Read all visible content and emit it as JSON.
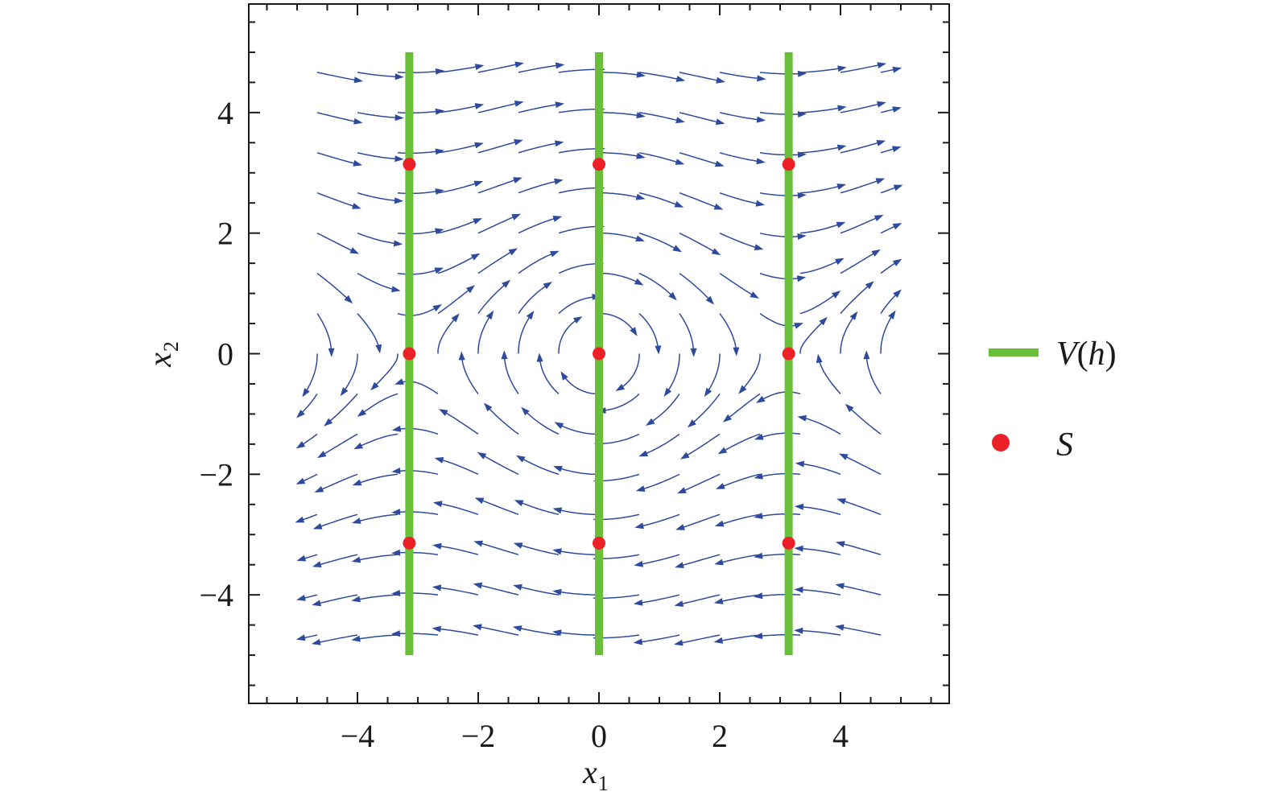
{
  "chart_data": {
    "type": "streamplot",
    "xlabel": {
      "base": "x",
      "sub": "1"
    },
    "ylabel": {
      "base": "x",
      "sub": "2"
    },
    "xlim": [
      -5.8,
      5.8
    ],
    "ylim": [
      -5.8,
      5.8
    ],
    "field_domain": [
      -5,
      5
    ],
    "x_ticks": [
      -4,
      -2,
      0,
      2,
      4
    ],
    "y_ticks": [
      -4,
      -2,
      0,
      2,
      4
    ],
    "x_tick_labels": [
      "−4",
      "−2",
      "0",
      "2",
      "4"
    ],
    "y_tick_labels": [
      "−4",
      "−2",
      "0",
      "2",
      "4"
    ],
    "minor_tick_step": 0.5,
    "vector_field": {
      "dx1": "x2",
      "dx2": "-sin(x1)"
    },
    "lines": [
      {
        "name": "V(h)",
        "x": -3.1416,
        "y_range": [
          -5,
          5
        ]
      },
      {
        "name": "V(h)",
        "x": 0,
        "y_range": [
          -5,
          5
        ]
      },
      {
        "name": "V(h)",
        "x": 3.1416,
        "y_range": [
          -5,
          5
        ]
      }
    ],
    "points": [
      {
        "x": -3.1416,
        "y": 3.1416
      },
      {
        "x": 0,
        "y": 3.1416
      },
      {
        "x": 3.1416,
        "y": 3.1416
      },
      {
        "x": -3.1416,
        "y": 0
      },
      {
        "x": 0,
        "y": 0
      },
      {
        "x": 3.1416,
        "y": 0
      },
      {
        "x": -3.1416,
        "y": -3.1416
      },
      {
        "x": 0,
        "y": -3.1416
      },
      {
        "x": 3.1416,
        "y": -3.1416
      }
    ],
    "legend": {
      "placement": "right",
      "entries": [
        {
          "label_main": "V",
          "label_rest": "(h)",
          "symbol": "line",
          "color": "#6abf3a"
        },
        {
          "label_main": "S",
          "label_rest": "",
          "symbol": "point",
          "color": "#ec2027"
        }
      ]
    },
    "colors": {
      "stream": "#2e4a9c",
      "line": "#6abf3a",
      "point": "#ec2027",
      "frame": "#1a1a1a"
    }
  }
}
